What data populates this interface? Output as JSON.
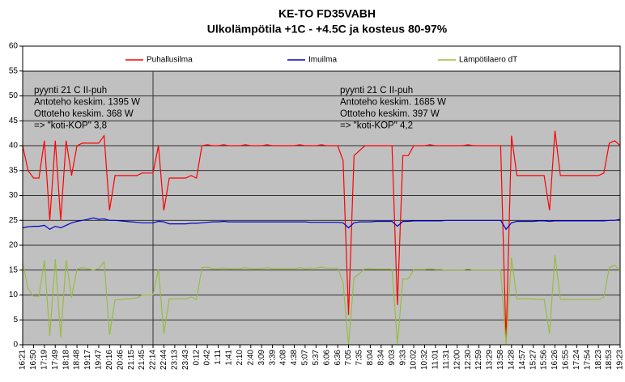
{
  "chart_data": {
    "type": "line",
    "title": "KE-TO FD35VABH",
    "subtitle": "Ulkolämpötila +1C - +4.5C ja kosteus 80-97%",
    "categories": [
      "16:21",
      null,
      "16:50",
      null,
      "17:19",
      null,
      "17:49",
      null,
      "18:18",
      null,
      "18:48",
      null,
      "19:17",
      null,
      "19:47",
      null,
      "20:16",
      null,
      "20:46",
      null,
      "21:15",
      null,
      "21:45",
      null,
      "22:14",
      null,
      "22:44",
      null,
      "23:13",
      null,
      "23:43",
      null,
      "0:12",
      null,
      "0:42",
      null,
      "1:11",
      null,
      "1:41",
      null,
      "2:10",
      null,
      "2:40",
      null,
      "3:09",
      null,
      "3:39",
      null,
      "4:08",
      null,
      "4:38",
      null,
      "5:07",
      null,
      "5:37",
      null,
      "6:06",
      null,
      "6:36",
      null,
      "7:05",
      null,
      "7:35",
      null,
      "8:04",
      null,
      "8:34",
      null,
      "9:03",
      null,
      "9:33",
      null,
      "10:02",
      null,
      "10:32",
      null,
      "11:01",
      null,
      "11:31",
      null,
      "12:00",
      null,
      "12:30",
      null,
      "12:59",
      null,
      "13:29",
      null,
      "13:58",
      null,
      "14:28",
      null,
      "14:57",
      null,
      "15:27",
      null,
      "15:56",
      null,
      "16:26",
      null,
      "16:55",
      null,
      "17:24",
      null,
      "17:54",
      null,
      "18:23",
      null,
      "18:53",
      null,
      "19:23"
    ],
    "series": [
      {
        "name": "Puhallusilma",
        "color": "#ff0000",
        "values": [
          40,
          35,
          33.5,
          33.5,
          41,
          25,
          41,
          25,
          41,
          34,
          40,
          40.5,
          40.5,
          40.5,
          40.5,
          42,
          27,
          34,
          34,
          34,
          34,
          34,
          34.5,
          34.5,
          34.5,
          40,
          27,
          33.5,
          33.5,
          33.5,
          33.5,
          34,
          33.5,
          40,
          40.2,
          40,
          40,
          40.2,
          40,
          40,
          40,
          40.2,
          40,
          40,
          40,
          40.2,
          40,
          40,
          40,
          40,
          40,
          40.2,
          40,
          40,
          40,
          40.2,
          40,
          40,
          40,
          37,
          6,
          38,
          39,
          40,
          40,
          40,
          40,
          40,
          40,
          8,
          38,
          38,
          40,
          40,
          40,
          40.2,
          40,
          40,
          40,
          40,
          40,
          40,
          40.2,
          40,
          40,
          40,
          40,
          40,
          40,
          0.5,
          42,
          34,
          34,
          34,
          34,
          34,
          34,
          27,
          43,
          34,
          34,
          34,
          34,
          34,
          34,
          34,
          34,
          34.5,
          40.5,
          41,
          40
        ]
      },
      {
        "name": "Imuilma",
        "color": "#0000cc",
        "values": [
          23.5,
          23.7,
          23.8,
          23.8,
          24,
          23.2,
          23.8,
          23.5,
          24,
          24.5,
          24.8,
          25,
          25.2,
          25.5,
          25.2,
          25.3,
          25,
          25,
          24.9,
          24.8,
          24.7,
          24.6,
          24.5,
          24.5,
          24.5,
          24.8,
          24.7,
          24.3,
          24.3,
          24.3,
          24.3,
          24.4,
          24.4,
          24.5,
          24.6,
          24.7,
          24.7,
          24.8,
          24.7,
          24.7,
          24.7,
          24.7,
          24.7,
          24.7,
          24.7,
          24.7,
          24.7,
          24.7,
          24.7,
          24.7,
          24.7,
          24.7,
          24.7,
          24.6,
          24.6,
          24.6,
          24.6,
          24.6,
          24.6,
          24.5,
          23.5,
          24.5,
          24.7,
          24.7,
          24.7,
          24.8,
          24.8,
          24.8,
          24.8,
          23.8,
          24.8,
          24.8,
          24.9,
          24.9,
          24.9,
          24.9,
          24.9,
          24.9,
          25,
          25,
          25,
          25,
          25,
          25,
          25,
          25,
          25,
          25,
          25,
          23.2,
          24.5,
          24.8,
          24.8,
          24.8,
          24.8,
          24.9,
          24.9,
          24.8,
          24.9,
          24.9,
          24.9,
          24.9,
          24.9,
          24.9,
          24.9,
          24.9,
          24.9,
          24.9,
          25,
          25,
          25.2
        ]
      },
      {
        "name": "Lämpötilaero dT",
        "color": "#99bb44",
        "values": [
          16.5,
          11.3,
          9.7,
          9.7,
          17,
          1.8,
          17.2,
          1.5,
          17,
          9.5,
          15.2,
          15.5,
          15.3,
          15,
          15.3,
          16.7,
          2,
          9,
          9.1,
          9.2,
          9.3,
          9.4,
          10,
          10,
          10,
          15.2,
          2.3,
          9.2,
          9.2,
          9.2,
          9.2,
          9.6,
          9.1,
          15.5,
          15.6,
          15.3,
          15.3,
          15.4,
          15.3,
          15.3,
          15.3,
          15.5,
          15.3,
          15.3,
          15.3,
          15.5,
          15.3,
          15.3,
          15.3,
          15.3,
          15.3,
          15.5,
          15.3,
          15.4,
          15.4,
          15.6,
          15.4,
          15.4,
          15.4,
          12.5,
          0,
          13.5,
          14.3,
          15.3,
          15.3,
          15.2,
          15.2,
          15.2,
          15.2,
          0,
          13.2,
          13.2,
          15.1,
          15.1,
          15.1,
          15.3,
          15.1,
          15.1,
          15,
          15,
          15,
          15,
          15.2,
          15,
          15,
          15,
          15,
          15,
          15,
          0,
          17.5,
          9.2,
          9.2,
          9.2,
          9.2,
          9.1,
          9.1,
          2.2,
          18,
          9.1,
          9.1,
          9.1,
          9.1,
          9.1,
          9.1,
          9.1,
          9.1,
          9.6,
          15.5,
          16,
          14.8
        ]
      }
    ],
    "ylim": [
      0,
      60
    ],
    "yticks": [
      0,
      5,
      10,
      15,
      20,
      25,
      30,
      35,
      40,
      45,
      50,
      55,
      60
    ],
    "grid": true,
    "legend": "top",
    "annotations": [
      [
        "pyynti 21 C II-puh",
        "Antoteho keskim. 1395 W",
        "Ottoteho keskim. 368 W",
        "=> \"koti-KOP\" 3,8"
      ],
      [
        "pyynti 21 C II-puh",
        "Antoteho keskim. 1685 W",
        "Ottoteho keskim. 397 W",
        "=> \"koti-KOP\" 4,2"
      ]
    ]
  }
}
